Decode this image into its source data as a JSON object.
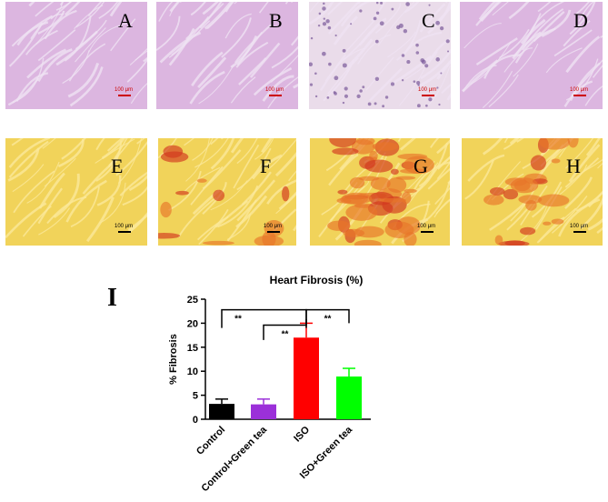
{
  "panels": [
    {
      "label": "A",
      "scale": "100 μm",
      "stain": "he"
    },
    {
      "label": "B",
      "scale": "100 μm",
      "stain": "he"
    },
    {
      "label": "C",
      "scale": "100 μm",
      "stain": "he"
    },
    {
      "label": "D",
      "scale": "100 μm",
      "stain": "he"
    },
    {
      "label": "E",
      "scale": "100 μm",
      "stain": "sirius"
    },
    {
      "label": "F",
      "scale": "100 μm",
      "stain": "sirius"
    },
    {
      "label": "G",
      "scale": "100 μm",
      "stain": "sirius"
    },
    {
      "label": "H",
      "scale": "100 μm",
      "stain": "sirius"
    }
  ],
  "panel_I_label": "I",
  "chart_data": {
    "type": "bar",
    "title": "Heart Fibrosis (%)",
    "ylabel": "% Fibrosis",
    "xlabel": "",
    "categories": [
      "Control",
      "Control+Green tea",
      "ISO",
      "ISO+Green tea"
    ],
    "values": [
      3.2,
      3.1,
      17.0,
      8.9
    ],
    "errors": [
      1.0,
      1.1,
      3.0,
      1.7
    ],
    "colors": [
      "#000000",
      "#9b30d9",
      "#ff0000",
      "#00ff00"
    ],
    "ylim": [
      0,
      25
    ],
    "yticks": [
      0,
      5,
      10,
      15,
      20,
      25
    ],
    "significance": [
      {
        "from": 0,
        "to": 2,
        "label": "**"
      },
      {
        "from": 1,
        "to": 2,
        "label": "**"
      },
      {
        "from": 2,
        "to": 3,
        "label": "**"
      }
    ]
  }
}
